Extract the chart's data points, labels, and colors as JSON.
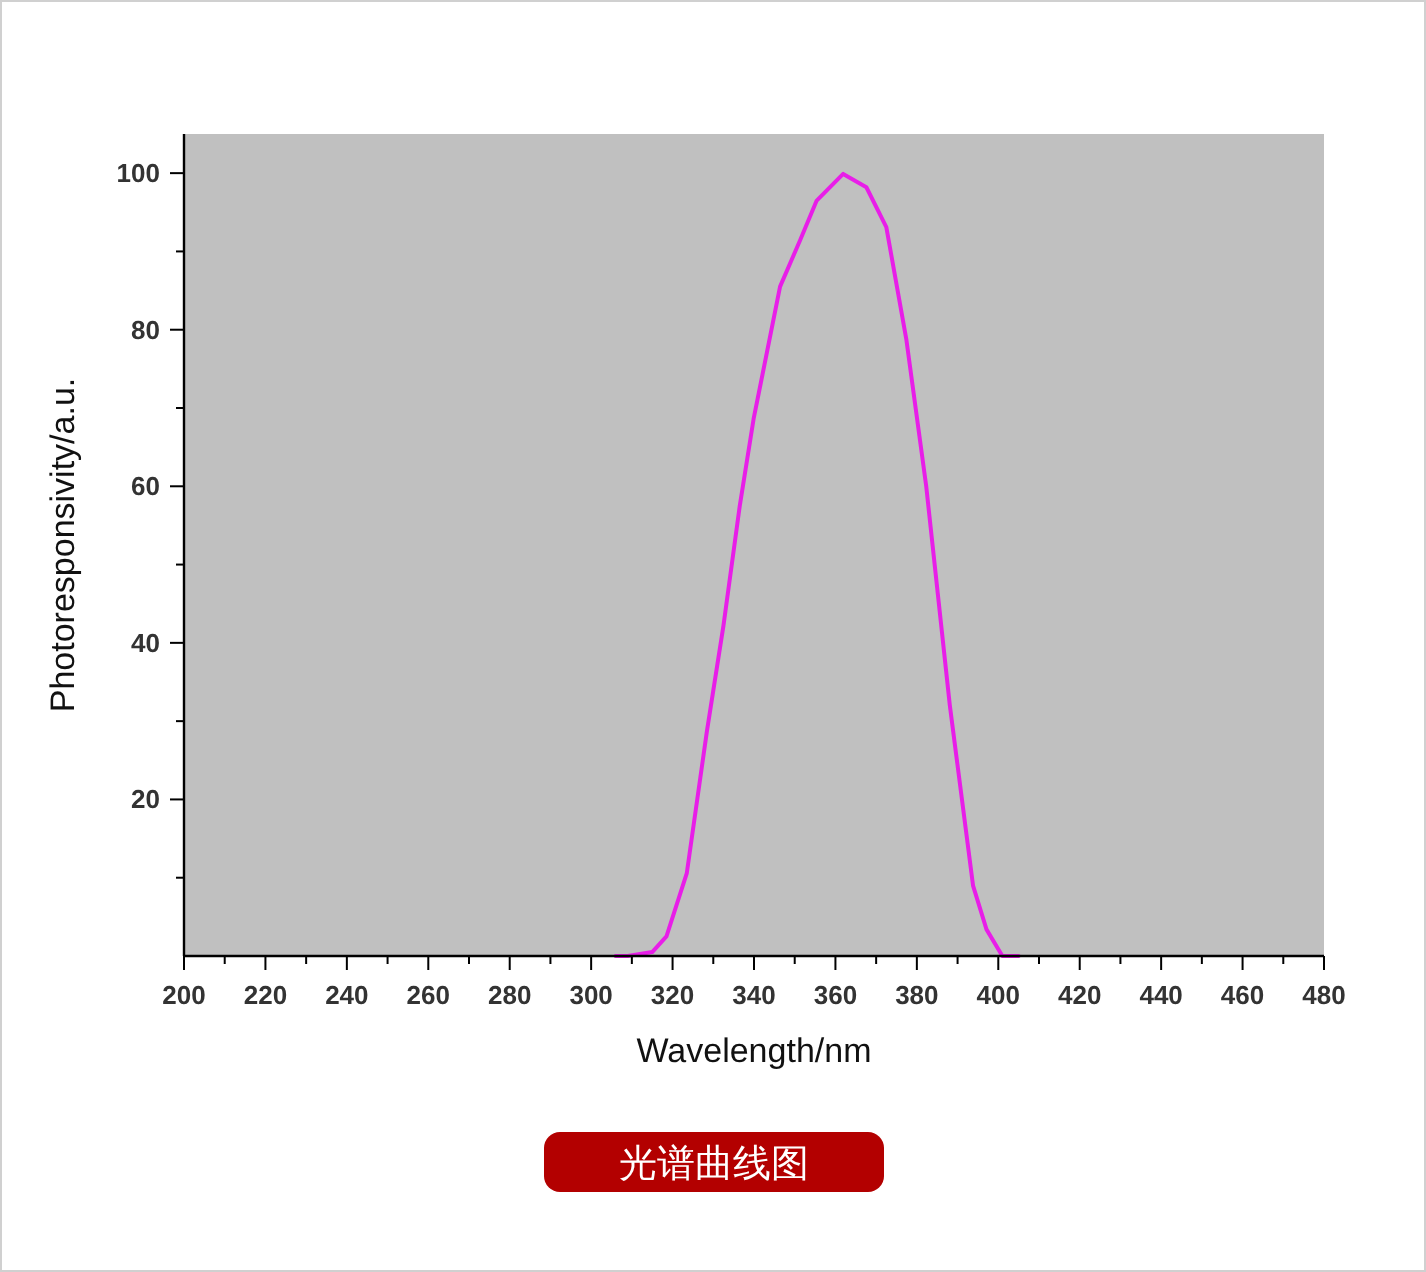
{
  "chart_data": {
    "type": "line",
    "xlabel": "Wavelength/nm",
    "ylabel": "Photoresponsivity/a.u.",
    "annotations": [
      "光谱曲线图"
    ],
    "x": [
      306,
      309,
      315,
      318.5,
      323.5,
      328.4,
      332.5,
      336.5,
      339.9,
      346.4,
      351.3,
      355.4,
      361.9,
      367.6,
      372.5,
      377.4,
      382.3,
      388.1,
      393.8,
      397.1,
      401,
      405
    ],
    "series": [
      {
        "color": "#e81ee8",
        "values": [
          0,
          0,
          0.5,
          2.5,
          10.6,
          28.6,
          42.2,
          57.5,
          68.6,
          85.5,
          91.4,
          96.5,
          99.9,
          98.2,
          93.1,
          78.8,
          60,
          32,
          9,
          3.4,
          0,
          0
        ]
      }
    ],
    "xlim": [
      200,
      480
    ],
    "ylim": [
      0,
      105
    ],
    "xticks": [
      200,
      {
        "value": 210,
        "label": null
      },
      220,
      {
        "value": 230,
        "label": null
      },
      240,
      {
        "value": 250,
        "label": null
      },
      260,
      {
        "value": 270,
        "label": null
      },
      280,
      {
        "value": 290,
        "label": null
      },
      300,
      {
        "value": 310,
        "label": null
      },
      320,
      {
        "value": 330,
        "label": null
      },
      340,
      {
        "value": 350,
        "label": null
      },
      360,
      {
        "value": 370,
        "label": null
      },
      380,
      {
        "value": 390,
        "label": null
      },
      400,
      {
        "value": 410,
        "label": null
      },
      420,
      {
        "value": 430,
        "label": null
      },
      440,
      {
        "value": 450,
        "label": null
      },
      460,
      {
        "value": 470,
        "label": null
      },
      480
    ],
    "yticks": [
      {
        "value": 10,
        "label": null
      },
      20,
      {
        "value": 30,
        "label": null
      },
      40,
      {
        "value": 50,
        "label": null
      },
      60,
      {
        "value": 70,
        "label": null
      },
      80,
      {
        "value": 90,
        "label": null
      },
      100
    ]
  }
}
